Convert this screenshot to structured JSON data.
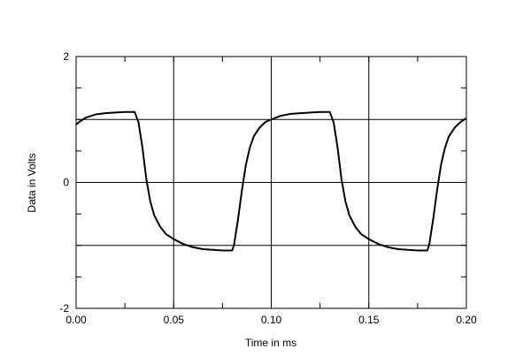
{
  "chart_data": {
    "type": "line",
    "title": "",
    "xlabel": "Time in ms",
    "ylabel": "Data in Volts",
    "xlim": [
      0.0,
      0.2
    ],
    "ylim": [
      -2,
      2
    ],
    "grid": true,
    "x_ticks": [
      {
        "value": 0.0,
        "label": "0.00"
      },
      {
        "value": 0.05,
        "label": "0.05"
      },
      {
        "value": 0.1,
        "label": "0.10"
      },
      {
        "value": 0.15,
        "label": "0.15"
      },
      {
        "value": 0.2,
        "label": "0.20"
      }
    ],
    "y_ticks": [
      {
        "value": -2,
        "label": "-2"
      },
      {
        "value": 0,
        "label": "0"
      },
      {
        "value": 2,
        "label": "2"
      }
    ],
    "y_grid": [
      -1,
      0,
      1
    ],
    "line_color": "#000000",
    "series": [
      {
        "x": [
          0.0,
          0.002,
          0.005,
          0.01,
          0.015,
          0.02,
          0.025,
          0.03,
          0.032,
          0.034,
          0.036,
          0.038,
          0.04,
          0.043,
          0.046,
          0.05,
          0.055,
          0.06,
          0.065,
          0.07,
          0.075,
          0.08,
          0.081,
          0.083,
          0.085,
          0.087,
          0.089,
          0.091,
          0.094,
          0.097,
          0.1,
          0.105,
          0.11,
          0.115,
          0.12,
          0.125,
          0.13,
          0.132,
          0.134,
          0.136,
          0.138,
          0.14,
          0.143,
          0.146,
          0.15,
          0.155,
          0.16,
          0.165,
          0.17,
          0.175,
          0.18,
          0.181,
          0.183,
          0.185,
          0.187,
          0.189,
          0.191,
          0.194,
          0.197,
          0.2
        ],
        "y": [
          0.92,
          0.97,
          1.03,
          1.08,
          1.1,
          1.11,
          1.12,
          1.12,
          0.95,
          0.55,
          0.05,
          -0.3,
          -0.52,
          -0.7,
          -0.82,
          -0.9,
          -0.98,
          -1.03,
          -1.06,
          -1.07,
          -1.08,
          -1.08,
          -0.98,
          -0.58,
          -0.12,
          0.28,
          0.55,
          0.73,
          0.87,
          0.96,
          1.0,
          1.06,
          1.09,
          1.1,
          1.11,
          1.12,
          1.12,
          0.95,
          0.55,
          0.05,
          -0.3,
          -0.52,
          -0.7,
          -0.82,
          -0.9,
          -0.98,
          -1.03,
          -1.06,
          -1.07,
          -1.08,
          -1.08,
          -0.98,
          -0.58,
          -0.12,
          0.28,
          0.55,
          0.73,
          0.87,
          0.96,
          1.02
        ]
      }
    ]
  }
}
